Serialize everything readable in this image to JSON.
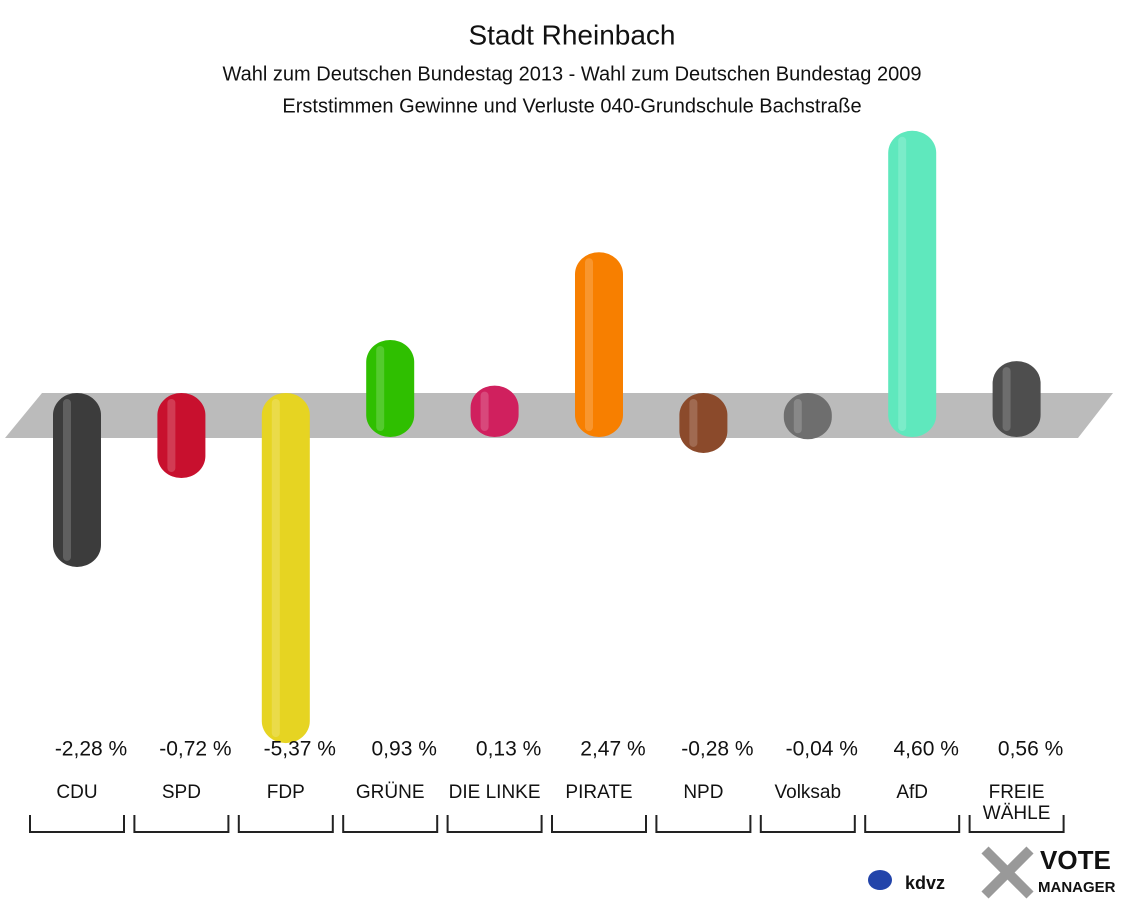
{
  "chart_data": {
    "type": "bar",
    "title": "Stadt Rheinbach",
    "subtitle": [
      "Wahl zum Deutschen Bundestag 2013 - Wahl zum Deutschen Bundestag 2009",
      "Erststimmen Gewinne und Verluste 040-Grundschule Bachstraße"
    ],
    "categories": [
      "CDU",
      "SPD",
      "FDP",
      "GRÜNE",
      "DIE LINKE",
      "PIRATE",
      "NPD",
      "Volksab",
      "AfD",
      "FREIE WÄHLE"
    ],
    "values": [
      -2.28,
      -0.72,
      -5.37,
      0.93,
      0.13,
      2.47,
      -0.28,
      -0.04,
      4.6,
      0.56
    ],
    "value_labels": [
      "-2,28 %",
      "-0,72 %",
      "-5,37 %",
      "0,93 %",
      "0,13 %",
      "2,47 %",
      "-0,28 %",
      "-0,04 %",
      "4,60 %",
      "0,56 %"
    ],
    "colors": [
      "#3c3c3c",
      "#c8102e",
      "#e6d422",
      "#2fbf00",
      "#d0205e",
      "#f77f00",
      "#8b4a2b",
      "#6e6e6e",
      "#5fe8bd",
      "#4e4e4e"
    ],
    "logos": [
      "kdvz",
      "VOTE",
      "MANAGER"
    ]
  }
}
